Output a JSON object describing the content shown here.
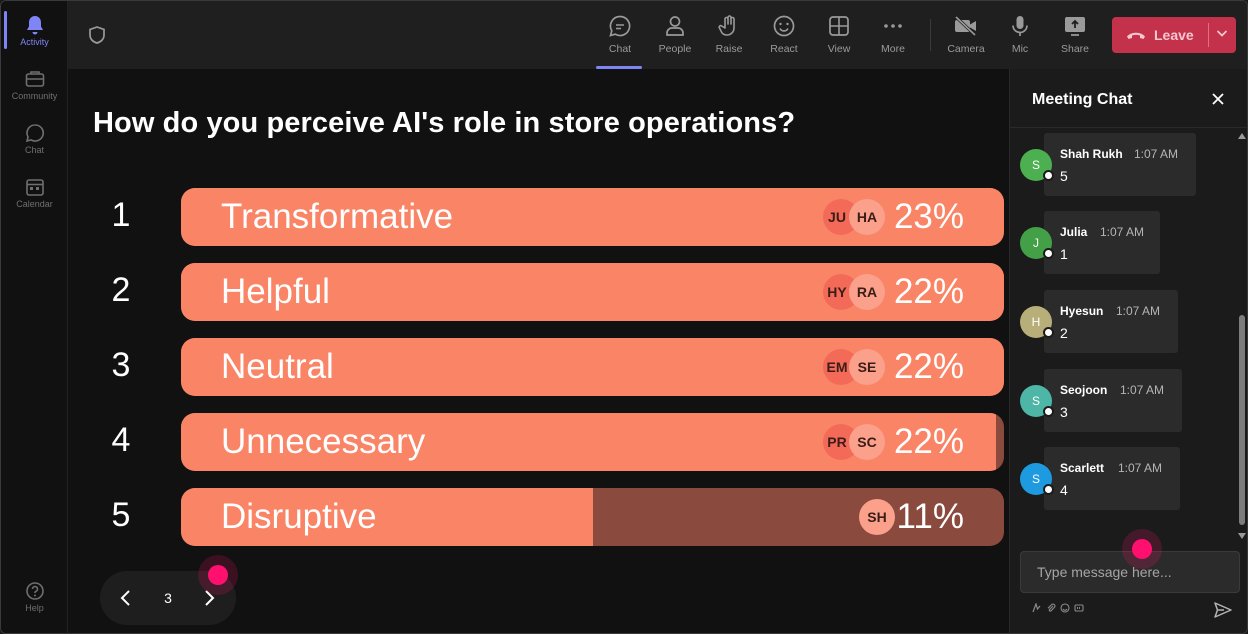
{
  "rail": {
    "items": [
      {
        "label": "Activity"
      },
      {
        "label": "Community"
      },
      {
        "label": "Chat"
      },
      {
        "label": "Calendar"
      }
    ],
    "help_label": "Help"
  },
  "toolbar": {
    "chat": "Chat",
    "people": "People",
    "raise": "Raise",
    "react": "React",
    "view": "View",
    "more": "More",
    "camera": "Camera",
    "mic": "Mic",
    "share": "Share",
    "leave": "Leave"
  },
  "poll": {
    "question": "How do you perceive AI's role in store operations?",
    "options": [
      {
        "num": "1",
        "label": "Transformative",
        "pct": "23%",
        "fraction": 1.0,
        "avatars": [
          "JU",
          "HA"
        ]
      },
      {
        "num": "2",
        "label": "Helpful",
        "pct": "22%",
        "fraction": 1.0,
        "avatars": [
          "HY",
          "RA"
        ]
      },
      {
        "num": "3",
        "label": "Neutral",
        "pct": "22%",
        "fraction": 1.0,
        "avatars": [
          "EM",
          "SE"
        ]
      },
      {
        "num": "4",
        "label": "Unnecessary",
        "pct": "22%",
        "fraction": 0.99,
        "avatars": [
          "PR",
          "SC"
        ]
      },
      {
        "num": "5",
        "label": "Disruptive",
        "pct": "11%",
        "fraction": 0.5,
        "avatars": [
          "SH"
        ]
      }
    ],
    "page": "3"
  },
  "chat": {
    "title": "Meeting Chat",
    "messages": [
      {
        "initial": "S",
        "name": "Shah Rukh",
        "time": "1:07 AM",
        "text": "5",
        "color": "#4caf50"
      },
      {
        "initial": "J",
        "name": "Julia",
        "time": "1:07 AM",
        "text": "1",
        "color": "#43a047"
      },
      {
        "initial": "H",
        "name": "Hyesun",
        "time": "1:07 AM",
        "text": "2",
        "color": "#b8ae7a"
      },
      {
        "initial": "S",
        "name": "Seojoon",
        "time": "1:07 AM",
        "text": "3",
        "color": "#4db6a6"
      },
      {
        "initial": "S",
        "name": "Scarlett",
        "time": "1:07 AM",
        "text": "4",
        "color": "#1e9be0"
      }
    ],
    "placeholder": "Type message here..."
  }
}
